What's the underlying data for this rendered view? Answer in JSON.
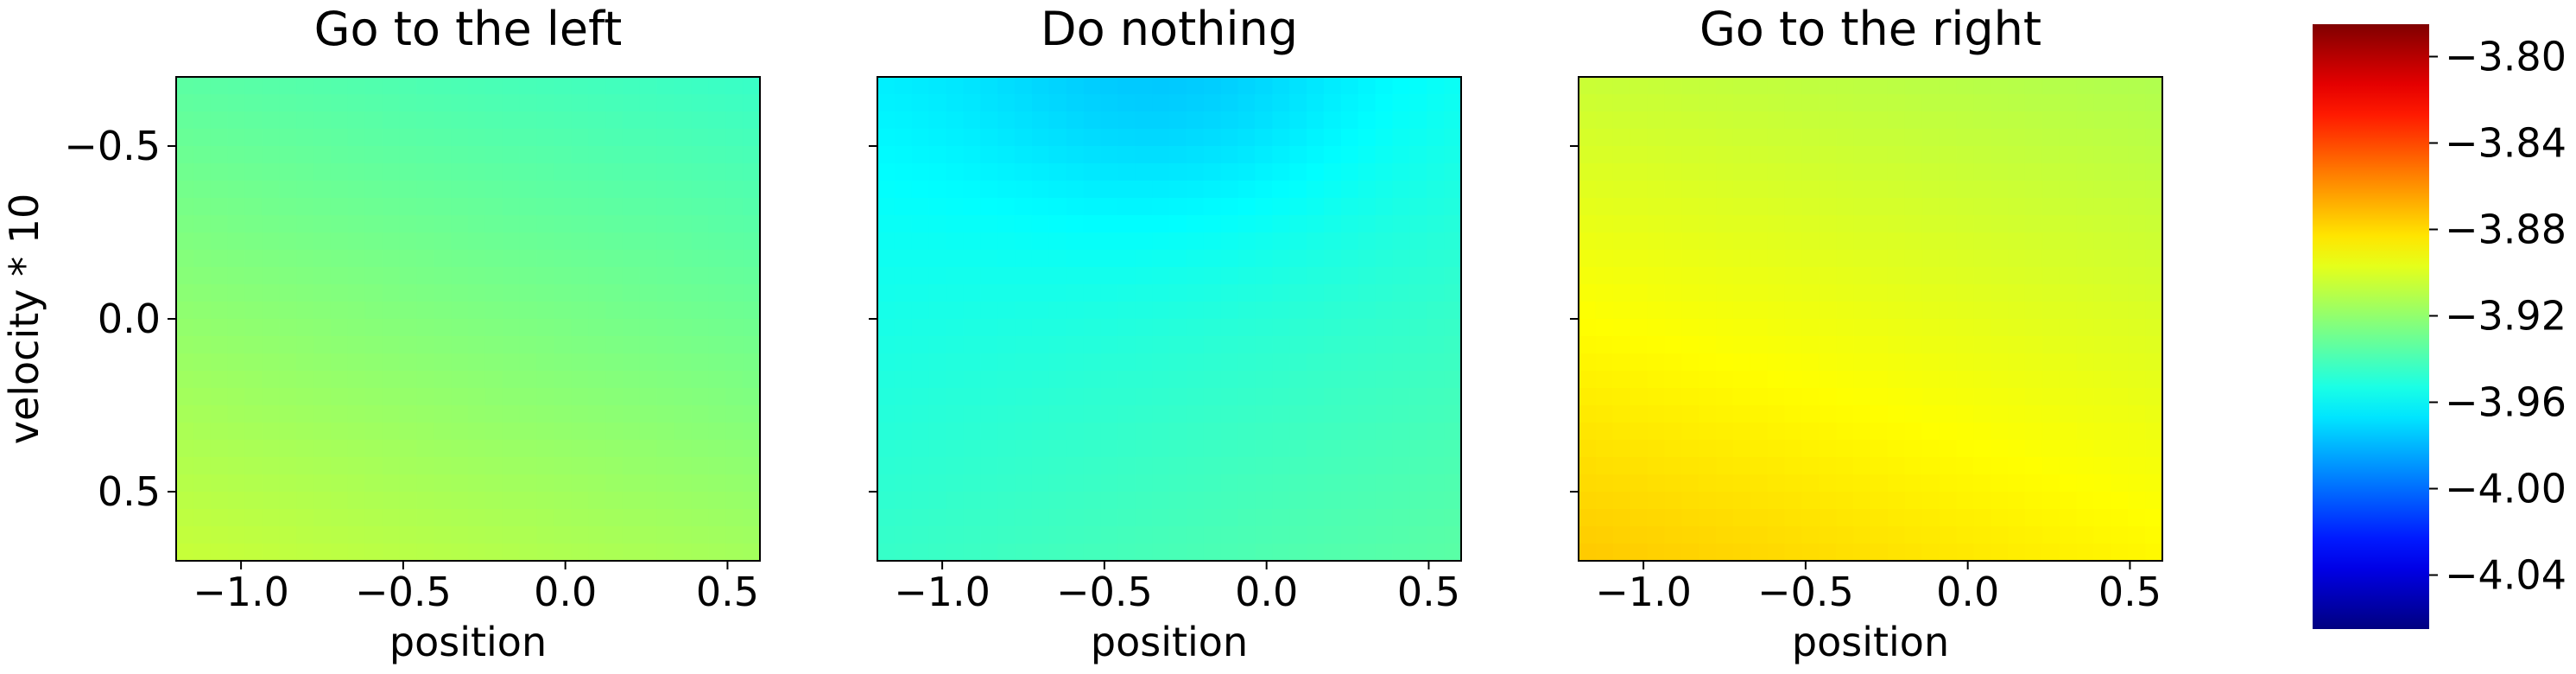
{
  "chart_data": {
    "type": "heatmap",
    "panels": [
      {
        "title": "Go to the left",
        "xlabel": "position",
        "ylabel": "velocity * 10",
        "xlim": [
          -1.2,
          0.6
        ],
        "ylim": [
          0.7,
          -0.7
        ],
        "xticks": [
          -1.0,
          -0.5,
          0.0,
          0.5
        ],
        "xticklabels": [
          "−1.0",
          "−0.5",
          "0.0",
          "0.5"
        ],
        "yticks": [
          -0.5,
          0.0,
          0.5
        ],
        "yticklabels": [
          "−0.5",
          "0.0",
          "0.5"
        ],
        "corner_values": {
          "top_left": -3.935,
          "top_right": -3.945,
          "bottom_left": -3.905,
          "bottom_right": -3.915
        }
      },
      {
        "title": "Do nothing",
        "xlabel": "position",
        "ylabel": "",
        "xlim": [
          -1.2,
          0.6
        ],
        "ylim": [
          0.7,
          -0.7
        ],
        "xticks": [
          -1.0,
          -0.5,
          0.0,
          0.5
        ],
        "xticklabels": [
          "−1.0",
          "−0.5",
          "0.0",
          "0.5"
        ],
        "yticks": [
          -0.5,
          0.0,
          0.5
        ],
        "yticklabels": [],
        "corner_values": {
          "top_left": -3.962,
          "top_right": -3.955,
          "bottom_left": -3.945,
          "bottom_right": -3.935
        },
        "min_region": {
          "x": -0.3,
          "y": -0.7,
          "value": -3.975
        }
      },
      {
        "title": "Go to the right",
        "xlabel": "position",
        "ylabel": "",
        "xlim": [
          -1.2,
          0.6
        ],
        "ylim": [
          0.7,
          -0.7
        ],
        "xticks": [
          -1.0,
          -0.5,
          0.0,
          0.5
        ],
        "xticklabels": [
          "−1.0",
          "−0.5",
          "0.0",
          "0.5"
        ],
        "yticks": [
          -0.5,
          0.0,
          0.5
        ],
        "yticklabels": [],
        "corner_values": {
          "top_left": -3.905,
          "top_right": -3.912,
          "bottom_left": -3.875,
          "bottom_right": -3.888
        }
      }
    ],
    "colorbar": {
      "colormap": "jet",
      "vmin": -4.065,
      "vmax": -3.785,
      "ticks": [
        -3.8,
        -3.84,
        -3.88,
        -3.92,
        -3.96,
        -4.0,
        -4.04
      ],
      "ticklabels": [
        "−3.80",
        "−3.84",
        "−3.88",
        "−3.92",
        "−3.96",
        "−4.00",
        "−4.04"
      ]
    }
  }
}
